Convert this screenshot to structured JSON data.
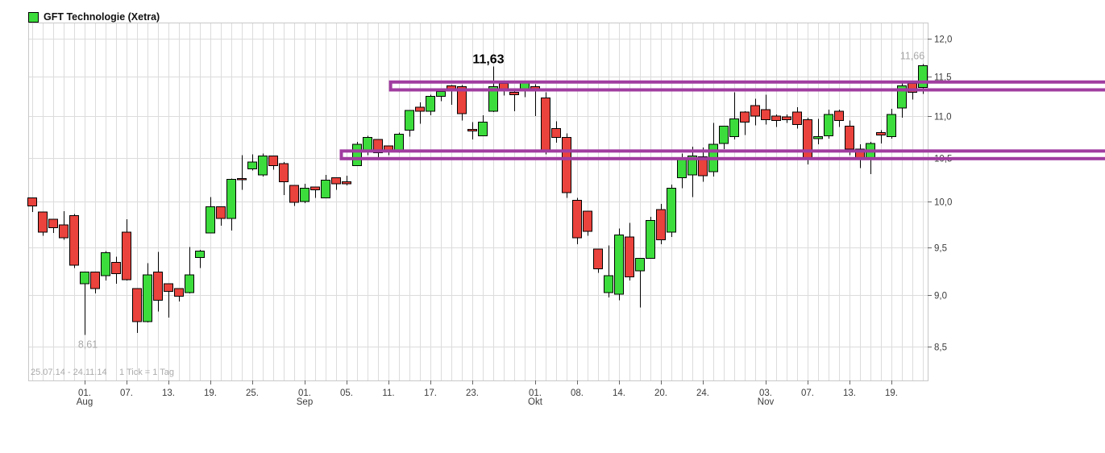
{
  "colors": {
    "up": "#3cdc3c",
    "down": "#ea423c",
    "outline": "#000000",
    "wick": "#000000",
    "zone": "#a03ca0",
    "grid": "#dcdcdc",
    "border": "#c8c8c8",
    "axis_text": "#3c3c3c",
    "muted_text": "#a8a8a8",
    "annotation_text": "#000000",
    "legend_square": "#3cdc3c"
  },
  "chart_data": {
    "type": "candlestick",
    "title": "GFT Technologie (Xetra)",
    "period_label": "25.07.14 - 24.11.14",
    "tick_label": "1 Tick = 1 Tag",
    "scale": "log",
    "y_axis": {
      "ticks": [
        8.5,
        9.0,
        9.5,
        10.0,
        10.5,
        11.0,
        11.5,
        12.0
      ],
      "tick_labels": [
        "8,5",
        "9,0",
        "9,5",
        "10,0",
        "10,5",
        "11,0",
        "11,5",
        "12,0"
      ]
    },
    "x_axis": {
      "ticks": [
        {
          "index": 5,
          "label": "01.",
          "month": "Aug"
        },
        {
          "index": 9,
          "label": "07."
        },
        {
          "index": 13,
          "label": "13."
        },
        {
          "index": 17,
          "label": "19."
        },
        {
          "index": 21,
          "label": "25."
        },
        {
          "index": 26,
          "label": "01.",
          "month": "Sep"
        },
        {
          "index": 30,
          "label": "05."
        },
        {
          "index": 34,
          "label": "11."
        },
        {
          "index": 38,
          "label": "17."
        },
        {
          "index": 42,
          "label": "23."
        },
        {
          "index": 48,
          "label": "01.",
          "month": "Okt"
        },
        {
          "index": 52,
          "label": "08."
        },
        {
          "index": 56,
          "label": "14."
        },
        {
          "index": 60,
          "label": "20."
        },
        {
          "index": 64,
          "label": "24."
        },
        {
          "index": 70,
          "label": "03.",
          "month": "Nov"
        },
        {
          "index": 74,
          "label": "07."
        },
        {
          "index": 78,
          "label": "13."
        },
        {
          "index": 82,
          "label": "19."
        }
      ]
    },
    "annotations": [
      {
        "text": "11,63",
        "index": 44,
        "price": 11.63,
        "style": "peak"
      },
      {
        "text": "11,66",
        "index": 84,
        "price": 11.66,
        "style": "last"
      },
      {
        "text": "8,61",
        "index": 5,
        "price": 8.61,
        "style": "low"
      }
    ],
    "zones": [
      {
        "name": "resistance-zone-upper",
        "from_index": 34.2,
        "price_top": 11.43,
        "price_bottom": 11.33
      },
      {
        "name": "support-zone-lower",
        "from_index": 29.5,
        "price_top": 10.58,
        "price_bottom": 10.49
      }
    ],
    "candles": [
      [
        10.04,
        10.04,
        9.88,
        9.95
      ],
      [
        9.88,
        9.88,
        9.62,
        9.66
      ],
      [
        9.8,
        9.8,
        9.65,
        9.71
      ],
      [
        9.74,
        9.89,
        9.58,
        9.6
      ],
      [
        9.84,
        9.86,
        9.28,
        9.31
      ],
      [
        9.12,
        9.24,
        8.61,
        9.24
      ],
      [
        9.24,
        9.24,
        9.02,
        9.07
      ],
      [
        9.2,
        9.46,
        9.15,
        9.44
      ],
      [
        9.34,
        9.4,
        9.12,
        9.22
      ],
      [
        9.66,
        9.8,
        9.15,
        9.16
      ],
      [
        9.07,
        9.07,
        8.63,
        8.74
      ],
      [
        8.74,
        9.33,
        8.73,
        9.21
      ],
      [
        9.24,
        9.45,
        8.84,
        8.95
      ],
      [
        9.12,
        9.12,
        8.78,
        9.04
      ],
      [
        9.07,
        9.07,
        8.94,
        8.99
      ],
      [
        9.03,
        9.5,
        9.02,
        9.21
      ],
      [
        9.39,
        9.47,
        9.28,
        9.46
      ],
      [
        9.65,
        10.05,
        9.65,
        9.94
      ],
      [
        9.94,
        9.94,
        9.73,
        9.81
      ],
      [
        9.81,
        10.26,
        9.68,
        10.25
      ],
      [
        10.26,
        10.53,
        10.13,
        10.25
      ],
      [
        10.37,
        10.54,
        10.35,
        10.45
      ],
      [
        10.3,
        10.55,
        10.28,
        10.52
      ],
      [
        10.52,
        10.52,
        10.36,
        10.41
      ],
      [
        10.43,
        10.45,
        10.07,
        10.22
      ],
      [
        10.18,
        10.18,
        9.95,
        9.99
      ],
      [
        10.0,
        10.2,
        9.98,
        10.15
      ],
      [
        10.16,
        10.16,
        10.04,
        10.13
      ],
      [
        10.04,
        10.3,
        10.04,
        10.24
      ],
      [
        10.27,
        10.27,
        10.13,
        10.2
      ],
      [
        10.22,
        10.29,
        10.18,
        10.2
      ],
      [
        10.41,
        10.69,
        10.41,
        10.66
      ],
      [
        10.58,
        10.76,
        10.53,
        10.74
      ],
      [
        10.72,
        10.72,
        10.5,
        10.56
      ],
      [
        10.64,
        10.64,
        10.53,
        10.58
      ],
      [
        10.58,
        10.8,
        10.56,
        10.78
      ],
      [
        10.83,
        11.07,
        10.75,
        11.07
      ],
      [
        11.11,
        11.17,
        10.91,
        11.06
      ],
      [
        11.06,
        11.27,
        11.01,
        11.25
      ],
      [
        11.25,
        11.33,
        11.19,
        11.31
      ],
      [
        11.38,
        11.39,
        11.14,
        11.33
      ],
      [
        11.37,
        11.39,
        10.95,
        11.03
      ],
      [
        10.84,
        10.93,
        10.72,
        10.82
      ],
      [
        10.76,
        11.01,
        10.76,
        10.93
      ],
      [
        11.06,
        11.63,
        11.05,
        11.37
      ],
      [
        11.41,
        11.43,
        11.26,
        11.33
      ],
      [
        11.3,
        11.32,
        11.06,
        11.27
      ],
      [
        11.33,
        11.45,
        11.24,
        11.42
      ],
      [
        11.37,
        11.4,
        11.0,
        11.33
      ],
      [
        11.23,
        11.3,
        10.54,
        10.59
      ],
      [
        10.85,
        10.94,
        10.68,
        10.74
      ],
      [
        10.74,
        10.79,
        10.04,
        10.1
      ],
      [
        10.01,
        10.04,
        9.53,
        9.6
      ],
      [
        9.89,
        9.89,
        9.62,
        9.67
      ],
      [
        9.48,
        9.48,
        9.23,
        9.27
      ],
      [
        9.03,
        9.52,
        8.98,
        9.2
      ],
      [
        9.01,
        9.7,
        8.95,
        9.63
      ],
      [
        9.61,
        9.76,
        9.15,
        9.19
      ],
      [
        9.25,
        9.38,
        8.88,
        9.38
      ],
      [
        9.38,
        9.83,
        9.38,
        9.79
      ],
      [
        9.91,
        9.97,
        9.53,
        9.58
      ],
      [
        9.66,
        10.19,
        9.61,
        10.15
      ],
      [
        10.27,
        10.55,
        10.15,
        10.5
      ],
      [
        10.3,
        10.63,
        10.05,
        10.52
      ],
      [
        10.51,
        10.62,
        10.22,
        10.29
      ],
      [
        10.34,
        10.92,
        10.28,
        10.66
      ],
      [
        10.67,
        10.88,
        10.6,
        10.88
      ],
      [
        10.75,
        11.3,
        10.72,
        10.97
      ],
      [
        11.05,
        11.06,
        10.77,
        10.93
      ],
      [
        11.13,
        11.22,
        10.89,
        11.0
      ],
      [
        11.08,
        11.27,
        10.9,
        10.96
      ],
      [
        11.0,
        11.02,
        10.87,
        10.95
      ],
      [
        10.99,
        11.02,
        10.92,
        10.96
      ],
      [
        11.05,
        11.11,
        10.85,
        10.9
      ],
      [
        10.96,
        10.98,
        10.42,
        10.49
      ],
      [
        10.73,
        10.97,
        10.66,
        10.75
      ],
      [
        10.76,
        11.08,
        10.73,
        11.02
      ],
      [
        11.06,
        11.08,
        10.87,
        10.95
      ],
      [
        10.88,
        10.95,
        10.53,
        10.6
      ],
      [
        10.6,
        10.66,
        10.38,
        10.5
      ],
      [
        10.5,
        10.69,
        10.31,
        10.67
      ],
      [
        10.8,
        10.83,
        10.67,
        10.77
      ],
      [
        10.75,
        11.09,
        10.73,
        11.02
      ],
      [
        11.1,
        11.43,
        10.98,
        11.38
      ],
      [
        11.41,
        11.44,
        11.21,
        11.3
      ],
      [
        11.36,
        11.66,
        11.28,
        11.64
      ]
    ]
  }
}
